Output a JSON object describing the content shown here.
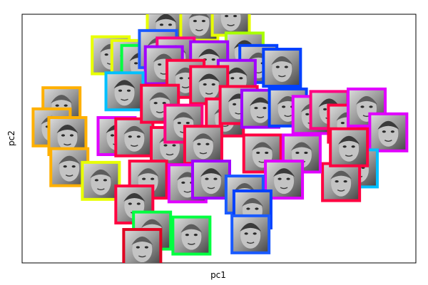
{
  "chart_data": {
    "type": "scatter",
    "title": "",
    "xlabel": "pc1",
    "ylabel": "pc2",
    "xlim": [
      -1.0,
      1.0
    ],
    "ylim": [
      -1.0,
      1.0
    ],
    "grid": false,
    "legend": "none",
    "ticks": "none",
    "marker": "face-thumbnail",
    "points": [
      {
        "x": -0.27,
        "y": 0.91,
        "color": "#e8ff00"
      },
      {
        "x": -0.1,
        "y": 0.94,
        "color": "#e8ff00"
      },
      {
        "x": 0.06,
        "y": 0.98,
        "color": "#e8ff00"
      },
      {
        "x": 0.13,
        "y": 0.7,
        "color": "#a8ff00"
      },
      {
        "x": -0.55,
        "y": 0.67,
        "color": "#e8ff00"
      },
      {
        "x": -0.45,
        "y": 0.64,
        "color": "#e8ff00"
      },
      {
        "x": -0.4,
        "y": 0.6,
        "color": "#00ff40"
      },
      {
        "x": -0.31,
        "y": 0.72,
        "color": "#1a5aff"
      },
      {
        "x": -0.22,
        "y": 0.66,
        "color": "#ff0080"
      },
      {
        "x": -0.05,
        "y": 0.63,
        "color": "#a000ff"
      },
      {
        "x": 0.2,
        "y": 0.6,
        "color": "#0040ff"
      },
      {
        "x": 0.32,
        "y": 0.57,
        "color": "#0040ff"
      },
      {
        "x": 0.09,
        "y": 0.48,
        "color": "#a000ff"
      },
      {
        "x": -0.28,
        "y": 0.59,
        "color": "#a000ff"
      },
      {
        "x": -0.17,
        "y": 0.48,
        "color": "#ff0040"
      },
      {
        "x": -0.05,
        "y": 0.43,
        "color": "#ff0040"
      },
      {
        "x": -0.8,
        "y": 0.26,
        "color": "#ffb000"
      },
      {
        "x": -0.85,
        "y": 0.09,
        "color": "#ffb000"
      },
      {
        "x": -0.77,
        "y": 0.02,
        "color": "#ffb000"
      },
      {
        "x": -0.76,
        "y": -0.23,
        "color": "#ffb000"
      },
      {
        "x": -0.6,
        "y": -0.34,
        "color": "#e8ff00"
      },
      {
        "x": -0.52,
        "y": 0.02,
        "color": "#e000ff"
      },
      {
        "x": -0.43,
        "y": 0.01,
        "color": "#ff0040"
      },
      {
        "x": -0.25,
        "y": -0.06,
        "color": "#ff0040"
      },
      {
        "x": -0.48,
        "y": 0.38,
        "color": "#00c0ff"
      },
      {
        "x": -0.3,
        "y": 0.28,
        "color": "#ff0040"
      },
      {
        "x": 0.03,
        "y": 0.17,
        "color": "#ff0040"
      },
      {
        "x": 0.1,
        "y": 0.27,
        "color": "#ff0040"
      },
      {
        "x": -0.18,
        "y": 0.12,
        "color": "#ff0080"
      },
      {
        "x": -0.08,
        "y": -0.05,
        "color": "#ff0040"
      },
      {
        "x": 0.21,
        "y": 0.24,
        "color": "#a000ff"
      },
      {
        "x": 0.35,
        "y": 0.25,
        "color": "#0040ff"
      },
      {
        "x": 0.47,
        "y": 0.19,
        "color": "#e000ff"
      },
      {
        "x": 0.56,
        "y": 0.23,
        "color": "#ff0080"
      },
      {
        "x": 0.65,
        "y": 0.12,
        "color": "#ff0040"
      },
      {
        "x": 0.75,
        "y": 0.25,
        "color": "#e000ff"
      },
      {
        "x": 0.86,
        "y": 0.05,
        "color": "#e000ff"
      },
      {
        "x": 0.71,
        "y": -0.24,
        "color": "#00c0ff"
      },
      {
        "x": 0.62,
        "y": -0.35,
        "color": "#ff0040"
      },
      {
        "x": 0.66,
        "y": -0.07,
        "color": "#ff0040"
      },
      {
        "x": 0.22,
        "y": -0.12,
        "color": "#ff0040"
      },
      {
        "x": 0.42,
        "y": -0.12,
        "color": "#e000ff"
      },
      {
        "x": 0.33,
        "y": -0.33,
        "color": "#e000ff"
      },
      {
        "x": -0.36,
        "y": -0.33,
        "color": "#ff0040"
      },
      {
        "x": -0.16,
        "y": -0.36,
        "color": "#e000ff"
      },
      {
        "x": -0.04,
        "y": -0.33,
        "color": "#a000ff"
      },
      {
        "x": 0.13,
        "y": -0.45,
        "color": "#1a5aff"
      },
      {
        "x": 0.17,
        "y": -0.57,
        "color": "#0040ff"
      },
      {
        "x": -0.43,
        "y": -0.53,
        "color": "#ff0040"
      },
      {
        "x": -0.34,
        "y": -0.74,
        "color": "#00ff40"
      },
      {
        "x": -0.14,
        "y": -0.78,
        "color": "#00ff40"
      },
      {
        "x": 0.16,
        "y": -0.77,
        "color": "#1a5aff"
      },
      {
        "x": -0.39,
        "y": -0.88,
        "color": "#e00020"
      }
    ]
  }
}
